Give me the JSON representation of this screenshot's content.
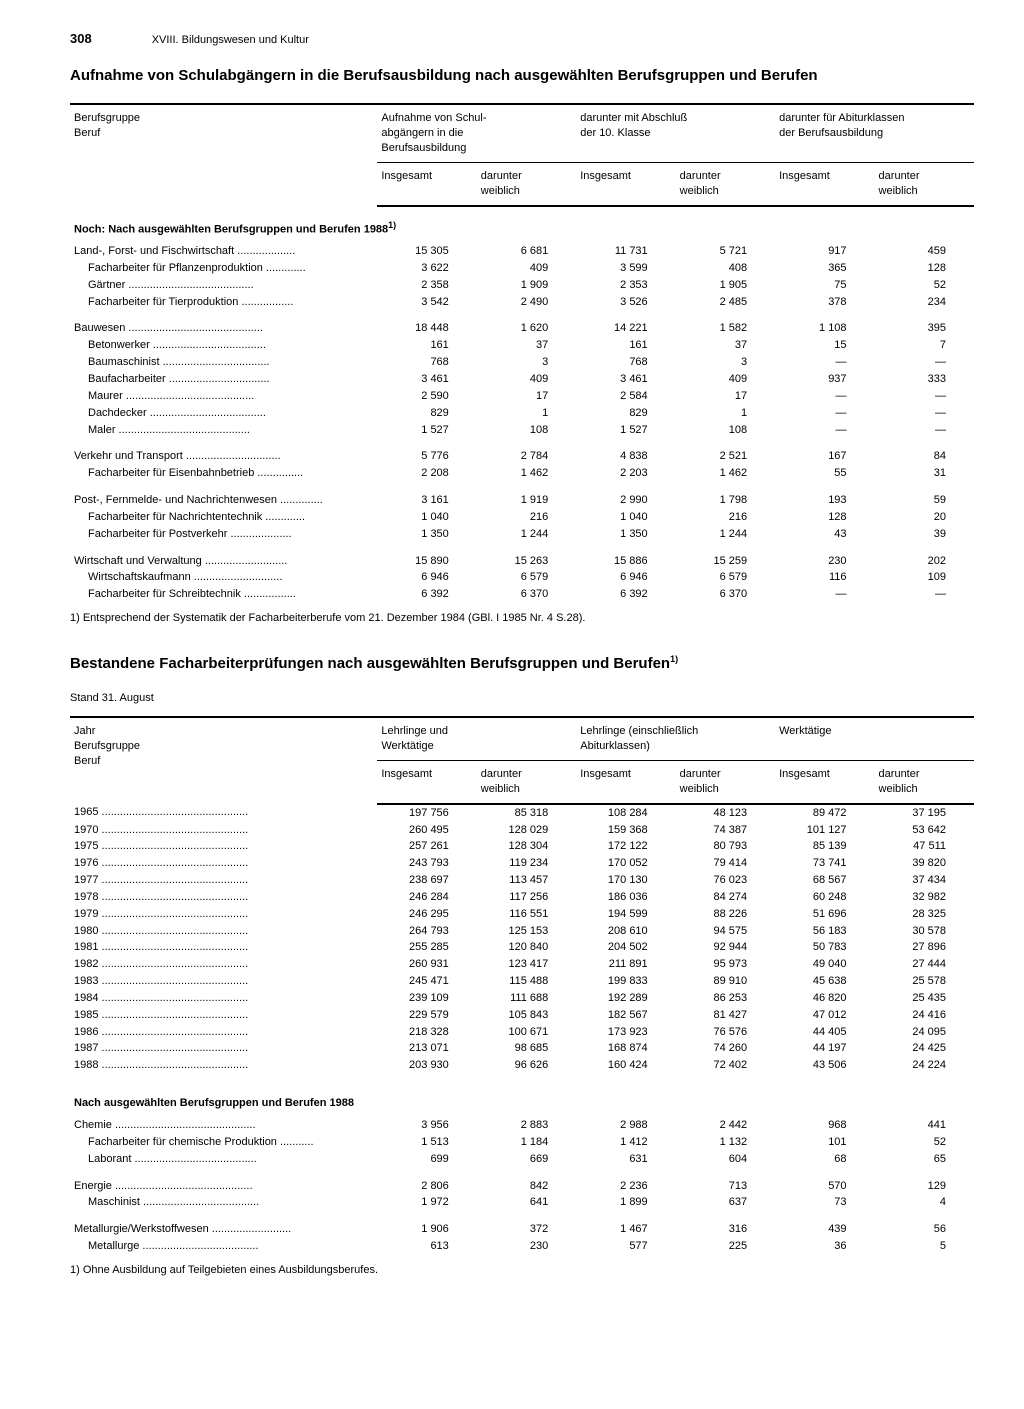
{
  "page": {
    "number": "308",
    "chapter": "XVIII. Bildungswesen und Kultur"
  },
  "table1": {
    "title": "Aufnahme von Schulabgängern in die Berufsausbildung nach ausgewählten Berufsgruppen und Berufen",
    "stub_h1": "Berufsgruppe",
    "stub_h2": "Beruf",
    "group_h1": "Aufnahme von Schul-\nabgängern in die\nBerufsausbildung",
    "group_h2": "darunter mit Abschluß\nder 10. Klasse",
    "group_h3": "darunter für Abiturklassen\nder Berufsausbildung",
    "sub_h1": "Insgesamt",
    "sub_h2": "darunter\nweiblich",
    "section": "Noch: Nach ausgewählten Berufsgruppen und Berufen 1988",
    "section_sup": "1)",
    "rows": [
      {
        "l": "Land-, Forst- und Fischwirtschaft",
        "i": 0,
        "v": [
          "15 305",
          "6 681",
          "11 731",
          "5 721",
          "917",
          "459"
        ]
      },
      {
        "l": "Facharbeiter für Pflanzenproduktion",
        "i": 1,
        "v": [
          "3 622",
          "409",
          "3 599",
          "408",
          "365",
          "128"
        ]
      },
      {
        "l": "Gärtner",
        "i": 1,
        "v": [
          "2 358",
          "1 909",
          "2 353",
          "1 905",
          "75",
          "52"
        ]
      },
      {
        "l": "Facharbeiter für Tierproduktion",
        "i": 1,
        "v": [
          "3 542",
          "2 490",
          "3 526",
          "2 485",
          "378",
          "234"
        ]
      },
      {
        "sp": true
      },
      {
        "l": "Bauwesen",
        "i": 0,
        "v": [
          "18 448",
          "1 620",
          "14 221",
          "1 582",
          "1 108",
          "395"
        ]
      },
      {
        "l": "Betonwerker",
        "i": 1,
        "v": [
          "161",
          "37",
          "161",
          "37",
          "15",
          "7"
        ]
      },
      {
        "l": "Baumaschinist",
        "i": 1,
        "v": [
          "768",
          "3",
          "768",
          "3",
          "—",
          "—"
        ]
      },
      {
        "l": "Baufacharbeiter",
        "i": 1,
        "v": [
          "3 461",
          "409",
          "3 461",
          "409",
          "937",
          "333"
        ]
      },
      {
        "l": "Maurer",
        "i": 1,
        "v": [
          "2 590",
          "17",
          "2 584",
          "17",
          "—",
          "—"
        ]
      },
      {
        "l": "Dachdecker",
        "i": 1,
        "v": [
          "829",
          "1",
          "829",
          "1",
          "—",
          "—"
        ]
      },
      {
        "l": "Maler",
        "i": 1,
        "v": [
          "1 527",
          "108",
          "1 527",
          "108",
          "—",
          "—"
        ]
      },
      {
        "sp": true
      },
      {
        "l": "Verkehr und Transport",
        "i": 0,
        "v": [
          "5 776",
          "2 784",
          "4 838",
          "2 521",
          "167",
          "84"
        ]
      },
      {
        "l": "Facharbeiter für Eisenbahnbetrieb",
        "i": 1,
        "v": [
          "2 208",
          "1 462",
          "2 203",
          "1 462",
          "55",
          "31"
        ]
      },
      {
        "sp": true
      },
      {
        "l": "Post-, Fernmelde- und Nachrichtenwesen",
        "i": 0,
        "v": [
          "3 161",
          "1 919",
          "2 990",
          "1 798",
          "193",
          "59"
        ]
      },
      {
        "l": "Facharbeiter für Nachrichtentechnik",
        "i": 1,
        "v": [
          "1 040",
          "216",
          "1 040",
          "216",
          "128",
          "20"
        ]
      },
      {
        "l": "Facharbeiter für Postverkehr",
        "i": 1,
        "v": [
          "1 350",
          "1 244",
          "1 350",
          "1 244",
          "43",
          "39"
        ]
      },
      {
        "sp": true
      },
      {
        "l": "Wirtschaft und Verwaltung",
        "i": 0,
        "v": [
          "15 890",
          "15 263",
          "15 886",
          "15 259",
          "230",
          "202"
        ]
      },
      {
        "l": "Wirtschaftskaufmann",
        "i": 1,
        "v": [
          "6 946",
          "6 579",
          "6 946",
          "6 579",
          "116",
          "109"
        ]
      },
      {
        "l": "Facharbeiter für Schreibtechnik",
        "i": 1,
        "v": [
          "6 392",
          "6 370",
          "6 392",
          "6 370",
          "—",
          "—"
        ]
      }
    ],
    "footnote": "1) Entsprechend der Systematik der Facharbeiterberufe vom 21. Dezember 1984 (GBl. I 1985 Nr. 4 S.28)."
  },
  "table2": {
    "title": "Bestandene Facharbeiterprüfungen nach ausgewählten Berufsgruppen und Berufen",
    "title_sup": "1)",
    "sub": "Stand 31. August",
    "stub_h1": "Jahr",
    "stub_h2": "Berufsgruppe",
    "stub_h3": "Beruf",
    "group_h1": "Lehrlinge und\nWerktätige",
    "group_h2": "Lehrlinge (einschließlich\nAbiturklassen)",
    "group_h3": "Werktätige",
    "sub_h1": "Insgesamt",
    "sub_h2": "darunter\nweiblich",
    "rows": [
      {
        "l": "1965",
        "i": 0,
        "v": [
          "197 756",
          "85 318",
          "108 284",
          "48 123",
          "89 472",
          "37 195"
        ]
      },
      {
        "l": "1970",
        "i": 0,
        "v": [
          "260 495",
          "128 029",
          "159 368",
          "74 387",
          "101 127",
          "53 642"
        ]
      },
      {
        "l": "1975",
        "i": 0,
        "v": [
          "257 261",
          "128 304",
          "172 122",
          "80 793",
          "85 139",
          "47 511"
        ]
      },
      {
        "l": "1976",
        "i": 0,
        "v": [
          "243 793",
          "119 234",
          "170 052",
          "79 414",
          "73 741",
          "39 820"
        ]
      },
      {
        "l": "1977",
        "i": 0,
        "v": [
          "238 697",
          "113 457",
          "170 130",
          "76 023",
          "68 567",
          "37 434"
        ]
      },
      {
        "l": "1978",
        "i": 0,
        "v": [
          "246 284",
          "117 256",
          "186 036",
          "84 274",
          "60 248",
          "32 982"
        ]
      },
      {
        "l": "1979",
        "i": 0,
        "v": [
          "246 295",
          "116 551",
          "194 599",
          "88 226",
          "51 696",
          "28 325"
        ]
      },
      {
        "l": "1980",
        "i": 0,
        "v": [
          "264 793",
          "125 153",
          "208 610",
          "94 575",
          "56 183",
          "30 578"
        ]
      },
      {
        "l": "1981",
        "i": 0,
        "v": [
          "255 285",
          "120 840",
          "204 502",
          "92 944",
          "50 783",
          "27 896"
        ]
      },
      {
        "l": "1982",
        "i": 0,
        "v": [
          "260 931",
          "123 417",
          "211 891",
          "95 973",
          "49 040",
          "27 444"
        ]
      },
      {
        "l": "1983",
        "i": 0,
        "v": [
          "245 471",
          "115 488",
          "199 833",
          "89 910",
          "45 638",
          "25 578"
        ]
      },
      {
        "l": "1984",
        "i": 0,
        "v": [
          "239 109",
          "111 688",
          "192 289",
          "86 253",
          "46 820",
          "25 435"
        ]
      },
      {
        "l": "1985",
        "i": 0,
        "v": [
          "229 579",
          "105 843",
          "182 567",
          "81 427",
          "47 012",
          "24 416"
        ]
      },
      {
        "l": "1986",
        "i": 0,
        "v": [
          "218 328",
          "100 671",
          "173 923",
          "76 576",
          "44 405",
          "24 095"
        ]
      },
      {
        "l": "1987",
        "i": 0,
        "v": [
          "213 071",
          "98 685",
          "168 874",
          "74 260",
          "44 197",
          "24 425"
        ]
      },
      {
        "l": "1988",
        "i": 0,
        "v": [
          "203 930",
          "96 626",
          "160 424",
          "72 402",
          "43 506",
          "24 224"
        ]
      }
    ],
    "section2": "Nach ausgewählten Berufsgruppen und Berufen 1988",
    "rows2": [
      {
        "l": "Chemie",
        "i": 0,
        "v": [
          "3 956",
          "2 883",
          "2 988",
          "2 442",
          "968",
          "441"
        ]
      },
      {
        "l": "Facharbeiter für chemische Produktion",
        "i": 1,
        "v": [
          "1 513",
          "1 184",
          "1 412",
          "1 132",
          "101",
          "52"
        ]
      },
      {
        "l": "Laborant",
        "i": 1,
        "v": [
          "699",
          "669",
          "631",
          "604",
          "68",
          "65"
        ]
      },
      {
        "sp": true
      },
      {
        "l": "Energie",
        "i": 0,
        "v": [
          "2 806",
          "842",
          "2 236",
          "713",
          "570",
          "129"
        ]
      },
      {
        "l": "Maschinist",
        "i": 1,
        "v": [
          "1 972",
          "641",
          "1 899",
          "637",
          "73",
          "4"
        ]
      },
      {
        "sp": true
      },
      {
        "l": "Metallurgie/Werkstoffwesen",
        "i": 0,
        "v": [
          "1 906",
          "372",
          "1 467",
          "316",
          "439",
          "56"
        ]
      },
      {
        "l": "Metallurge",
        "i": 1,
        "v": [
          "613",
          "230",
          "577",
          "225",
          "36",
          "5"
        ]
      }
    ],
    "footnote": "1) Ohne Ausbildung auf Teilgebieten eines Ausbildungsberufes."
  }
}
